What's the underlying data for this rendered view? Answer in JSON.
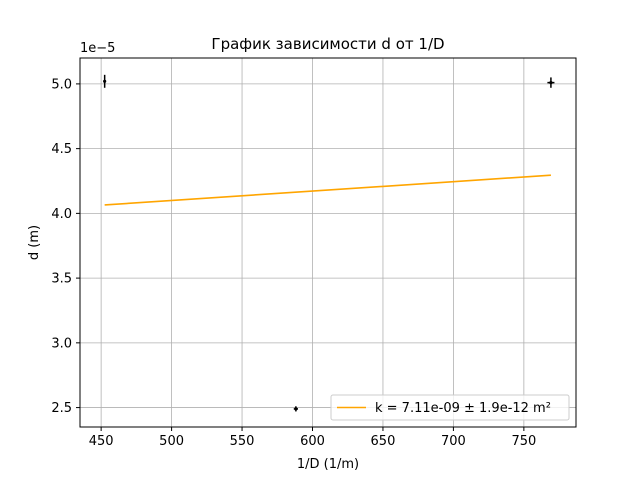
{
  "chart_data": {
    "type": "scatter",
    "title": "График зависимости d от 1/D",
    "xlabel": "1/D (1/m)",
    "ylabel": "d (m)",
    "y_offset_label": "1e−5",
    "xlim": [
      435,
      787
    ],
    "ylim": [
      2.35,
      5.2
    ],
    "x_ticks": [
      450,
      500,
      550,
      600,
      650,
      700,
      750
    ],
    "y_ticks": [
      2.5,
      3.0,
      3.5,
      4.0,
      4.5,
      5.0
    ],
    "y_tick_labels": [
      "2.5",
      "3.0",
      "3.5",
      "4.0",
      "4.5",
      "5.0"
    ],
    "grid": true,
    "legend_position": "lower-right",
    "points": [
      {
        "x": 452.5,
        "y": 5.02,
        "yerr": 0.05,
        "xerr": 0.8
      },
      {
        "x": 588.2,
        "y": 2.49,
        "yerr": 0.02,
        "xerr": 1.5
      },
      {
        "x": 769.2,
        "y": 5.01,
        "yerr": 0.04,
        "xerr": 2.5
      }
    ],
    "fit_line": {
      "label": "k = 7.11e-09 ± 1.9e-12 m²",
      "x": [
        452.5,
        769.2
      ],
      "y": [
        4.065,
        4.295
      ],
      "color": "#ffa500"
    },
    "point_color": "#000000"
  }
}
